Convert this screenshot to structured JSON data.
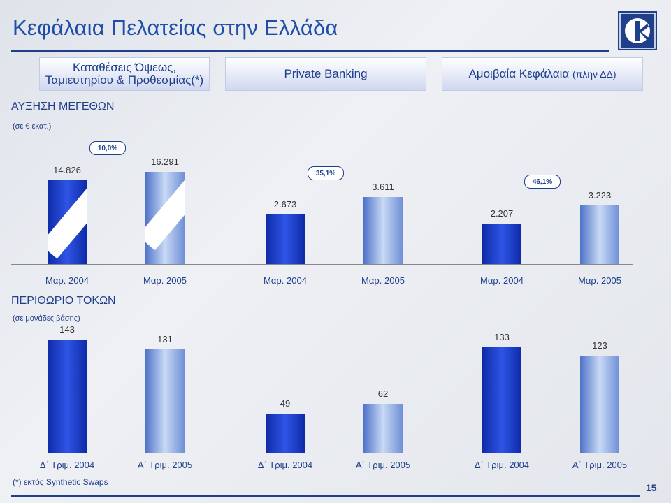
{
  "title": "Κεφάλαια Πελατείας στην Ελλάδα",
  "headers": [
    {
      "line1": "Καταθέσεις Όψεως,",
      "line2": "Ταμιευτηρίου & Προθεσμίας(*)"
    },
    {
      "line1": "Private Banking",
      "line2": ""
    },
    {
      "line1": "Αμοιβαία Κεφάλαια",
      "line2": "(πλην ΔΔ)"
    }
  ],
  "section1": {
    "title": "ΑΥΞΗΣΗ ΜΕΓΕΘΩΝ",
    "unit": "(σε € εκατ.)"
  },
  "section2": {
    "title": "ΠΕΡΙΘΩΡΙΟ ΤΟΚΩΝ",
    "unit": "(σε μονάδες βάσης)"
  },
  "footnote": "(*) εκτός Synthetic Swaps",
  "page_number": "15",
  "colors": {
    "dark_bar": "#1a3fd0",
    "light_bar": "#a9c2ef",
    "accent": "#1f3f8a"
  },
  "chart_data": [
    {
      "type": "bar",
      "title": "ΑΥΞΗΣΗ ΜΕΓΕΘΩΝ",
      "ylabel": "(σε € εκατ.)",
      "groups": [
        {
          "name": "Καταθέσεις Όψεως, Ταμιευτηρίου & Προθεσμίας(*)",
          "categories": [
            "Μαρ. 2004",
            "Μαρ. 2005"
          ],
          "values": [
            14826,
            16291
          ],
          "labels": [
            "14.826",
            "16.291"
          ],
          "growth": "10,0%"
        },
        {
          "name": "Private Banking",
          "categories": [
            "Μαρ. 2004",
            "Μαρ. 2005"
          ],
          "values": [
            2673,
            3611
          ],
          "labels": [
            "2.673",
            "3.611"
          ],
          "growth": "35,1%"
        },
        {
          "name": "Αμοιβαία Κεφάλαια (πλην ΔΔ)",
          "categories": [
            "Μαρ. 2004",
            "Μαρ. 2005"
          ],
          "values": [
            2207,
            3223
          ],
          "labels": [
            "2.207",
            "3.223"
          ],
          "growth": "46,1%"
        }
      ]
    },
    {
      "type": "bar",
      "title": "ΠΕΡΙΘΩΡΙΟ ΤΟΚΩΝ",
      "ylabel": "(σε μονάδες βάσης)",
      "groups": [
        {
          "name": "Καταθέσεις Όψεως, Ταμιευτηρίου & Προθεσμίας(*)",
          "categories": [
            "Δ΄ Τριμ. 2004",
            "Α΄ Τριμ. 2005"
          ],
          "values": [
            143,
            131
          ],
          "labels": [
            "143",
            "131"
          ]
        },
        {
          "name": "Private Banking",
          "categories": [
            "Δ΄ Τριμ. 2004",
            "Α΄ Τριμ. 2005"
          ],
          "values": [
            49,
            62
          ],
          "labels": [
            "49",
            "62"
          ]
        },
        {
          "name": "Αμοιβαία Κεφάλαια (πλην ΔΔ)",
          "categories": [
            "Δ΄ Τριμ. 2004",
            "Α΄ Τριμ. 2005"
          ],
          "values": [
            133,
            123
          ],
          "labels": [
            "133",
            "123"
          ]
        }
      ]
    }
  ]
}
